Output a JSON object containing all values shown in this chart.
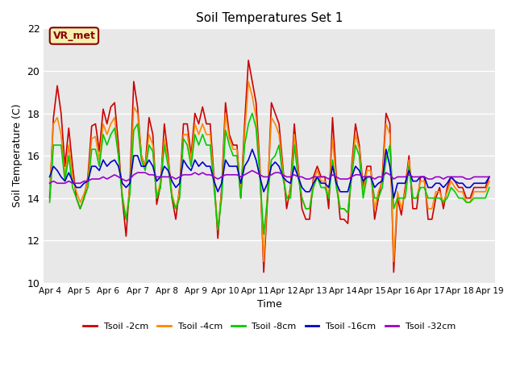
{
  "title": "Soil Temperatures Set 1",
  "xlabel": "Time",
  "ylabel": "Soil Temperature (C)",
  "ylim": [
    10,
    22
  ],
  "yticks": [
    10,
    12,
    14,
    16,
    18,
    20,
    22
  ],
  "background_color": "#e8e8e8",
  "annotation_text": "VR_met",
  "annotation_color": "#8B0000",
  "annotation_bg": "#f5f0b0",
  "series_colors": [
    "#cc0000",
    "#ff8800",
    "#00cc00",
    "#0000cc",
    "#9900cc"
  ],
  "series_labels": [
    "Tsoil -2cm",
    "Tsoil -4cm",
    "Tsoil -8cm",
    "Tsoil -16cm",
    "Tsoil -32cm"
  ],
  "xtick_labels": [
    "Apr 4",
    "Apr 5",
    "Apr 6",
    "Apr 7",
    "Apr 8",
    "Apr 9",
    "Apr 10",
    "Apr 11",
    "Apr 12",
    "Apr 13",
    "Apr 14",
    "Apr 15",
    "Apr 16",
    "Apr 17",
    "Apr 18",
    "Apr 19"
  ],
  "t2cm": [
    14.0,
    17.8,
    19.3,
    18.0,
    15.5,
    17.3,
    15.5,
    14.0,
    13.5,
    14.0,
    15.0,
    17.4,
    17.5,
    16.2,
    18.2,
    17.5,
    18.3,
    18.5,
    16.5,
    14.0,
    12.2,
    14.8,
    19.5,
    18.3,
    16.0,
    15.5,
    17.8,
    17.0,
    13.7,
    14.6,
    17.5,
    16.0,
    14.0,
    13.0,
    14.5,
    17.5,
    17.5,
    16.0,
    18.0,
    17.5,
    18.3,
    17.5,
    17.5,
    15.0,
    12.1,
    14.5,
    18.5,
    17.0,
    16.5,
    16.5,
    14.0,
    17.5,
    20.5,
    19.5,
    18.5,
    15.5,
    10.5,
    14.0,
    18.5,
    18.0,
    17.5,
    15.5,
    13.5,
    14.5,
    17.5,
    15.5,
    13.5,
    13.0,
    13.0,
    15.0,
    15.5,
    15.0,
    15.0,
    13.5,
    17.8,
    15.0,
    13.0,
    13.0,
    12.8,
    15.5,
    17.5,
    16.5,
    14.5,
    15.5,
    15.5,
    13.0,
    14.0,
    15.0,
    18.0,
    17.5,
    10.5,
    14.0,
    13.2,
    14.5,
    16.0,
    13.5,
    13.5,
    15.0,
    15.0,
    13.0,
    13.0,
    14.0,
    14.5,
    13.5,
    14.5,
    15.0,
    14.8,
    14.5,
    14.5,
    14.0,
    14.0,
    14.5,
    14.5,
    14.5,
    14.5,
    15.0
  ],
  "t4cm": [
    14.3,
    17.5,
    17.8,
    17.0,
    15.0,
    16.5,
    15.0,
    14.3,
    13.8,
    14.2,
    14.8,
    16.8,
    16.9,
    15.8,
    17.5,
    17.0,
    17.5,
    17.8,
    16.0,
    14.2,
    13.0,
    14.5,
    18.3,
    18.0,
    16.0,
    15.5,
    17.0,
    16.5,
    14.0,
    14.8,
    16.8,
    15.8,
    14.2,
    13.5,
    14.3,
    17.0,
    17.0,
    15.8,
    17.5,
    17.0,
    17.5,
    17.0,
    17.0,
    14.8,
    12.5,
    14.3,
    18.0,
    16.8,
    16.3,
    16.3,
    14.2,
    17.0,
    19.5,
    18.8,
    17.8,
    15.3,
    11.0,
    14.3,
    17.8,
    17.5,
    17.0,
    15.3,
    14.0,
    14.3,
    17.0,
    15.3,
    14.0,
    13.5,
    13.5,
    14.8,
    15.3,
    14.8,
    14.8,
    14.0,
    16.8,
    14.8,
    13.5,
    13.5,
    13.3,
    15.3,
    17.0,
    16.3,
    14.3,
    15.3,
    15.3,
    13.5,
    14.3,
    14.8,
    17.5,
    17.0,
    11.0,
    14.3,
    13.5,
    14.3,
    15.8,
    14.0,
    14.0,
    14.8,
    14.8,
    13.5,
    13.5,
    14.3,
    14.3,
    13.8,
    14.3,
    14.8,
    14.5,
    14.3,
    14.3,
    13.8,
    13.8,
    14.3,
    14.3,
    14.3,
    14.3,
    14.8
  ],
  "t8cm": [
    13.8,
    16.5,
    16.5,
    16.5,
    14.8,
    16.0,
    14.5,
    14.0,
    13.5,
    14.0,
    14.5,
    16.3,
    16.3,
    15.5,
    17.0,
    16.5,
    17.0,
    17.3,
    16.0,
    14.0,
    13.0,
    14.2,
    17.2,
    17.5,
    15.8,
    15.3,
    16.5,
    16.2,
    14.0,
    14.5,
    16.5,
    15.5,
    14.0,
    13.5,
    14.0,
    16.8,
    16.5,
    15.5,
    17.0,
    16.5,
    17.0,
    16.5,
    16.5,
    14.5,
    12.5,
    14.0,
    17.2,
    16.5,
    16.0,
    16.0,
    14.0,
    16.5,
    17.5,
    18.0,
    17.3,
    15.0,
    12.3,
    14.0,
    15.8,
    16.0,
    16.5,
    15.0,
    14.0,
    14.0,
    16.5,
    15.0,
    14.0,
    13.5,
    13.5,
    14.5,
    15.0,
    14.5,
    14.5,
    14.0,
    15.8,
    14.5,
    13.5,
    13.5,
    13.3,
    15.0,
    16.5,
    16.0,
    14.0,
    15.0,
    15.0,
    14.0,
    14.0,
    14.5,
    15.8,
    16.5,
    13.5,
    14.0,
    14.0,
    14.0,
    15.5,
    14.0,
    14.0,
    14.5,
    14.5,
    14.0,
    14.0,
    14.0,
    14.0,
    13.8,
    14.0,
    14.5,
    14.3,
    14.0,
    14.0,
    13.8,
    13.8,
    14.0,
    14.0,
    14.0,
    14.0,
    14.5
  ],
  "t16cm": [
    15.0,
    15.5,
    15.3,
    15.0,
    14.8,
    15.2,
    14.8,
    14.5,
    14.5,
    14.7,
    14.8,
    15.5,
    15.5,
    15.3,
    15.8,
    15.5,
    15.7,
    15.8,
    15.5,
    14.7,
    14.5,
    14.7,
    16.0,
    16.0,
    15.5,
    15.5,
    15.8,
    15.5,
    14.8,
    15.0,
    15.5,
    15.3,
    14.8,
    14.5,
    14.7,
    15.8,
    15.5,
    15.3,
    15.8,
    15.5,
    15.7,
    15.5,
    15.5,
    14.8,
    14.3,
    14.7,
    15.8,
    15.5,
    15.5,
    15.5,
    14.7,
    15.5,
    15.8,
    16.3,
    15.8,
    15.0,
    14.3,
    14.7,
    15.5,
    15.7,
    15.5,
    15.0,
    14.8,
    14.7,
    15.5,
    15.0,
    14.5,
    14.3,
    14.3,
    14.7,
    15.0,
    14.7,
    14.7,
    14.5,
    15.5,
    14.7,
    14.3,
    14.3,
    14.3,
    15.0,
    15.5,
    15.3,
    14.8,
    15.0,
    15.0,
    14.5,
    14.7,
    14.8,
    16.3,
    15.5,
    14.0,
    14.7,
    14.7,
    14.7,
    15.3,
    14.8,
    14.8,
    15.0,
    15.0,
    14.5,
    14.5,
    14.7,
    14.7,
    14.5,
    14.7,
    15.0,
    14.8,
    14.7,
    14.7,
    14.5,
    14.5,
    14.7,
    14.7,
    14.7,
    14.7,
    15.0
  ],
  "t32cm": [
    14.7,
    14.8,
    14.7,
    14.7,
    14.7,
    14.8,
    14.7,
    14.7,
    14.7,
    14.8,
    14.8,
    14.9,
    14.9,
    14.9,
    15.0,
    14.9,
    15.0,
    15.1,
    15.0,
    14.9,
    14.8,
    14.9,
    15.1,
    15.2,
    15.2,
    15.2,
    15.1,
    15.1,
    15.0,
    15.0,
    15.0,
    15.0,
    15.0,
    14.9,
    15.0,
    15.1,
    15.1,
    15.1,
    15.2,
    15.1,
    15.2,
    15.1,
    15.1,
    15.0,
    14.9,
    15.0,
    15.1,
    15.1,
    15.1,
    15.1,
    15.0,
    15.1,
    15.2,
    15.3,
    15.2,
    15.1,
    15.0,
    15.0,
    15.1,
    15.2,
    15.2,
    15.1,
    15.0,
    15.0,
    15.1,
    15.0,
    15.0,
    14.9,
    14.9,
    15.0,
    15.0,
    15.0,
    15.0,
    14.9,
    15.1,
    15.0,
    14.9,
    14.9,
    14.9,
    15.0,
    15.1,
    15.1,
    15.0,
    15.0,
    15.0,
    14.9,
    15.0,
    15.0,
    15.2,
    15.1,
    14.9,
    15.0,
    15.0,
    15.0,
    15.1,
    15.0,
    15.0,
    15.0,
    15.0,
    14.9,
    14.9,
    15.0,
    15.0,
    14.9,
    15.0,
    15.0,
    15.0,
    15.0,
    15.0,
    14.9,
    14.9,
    15.0,
    15.0,
    15.0,
    15.0,
    15.0
  ]
}
